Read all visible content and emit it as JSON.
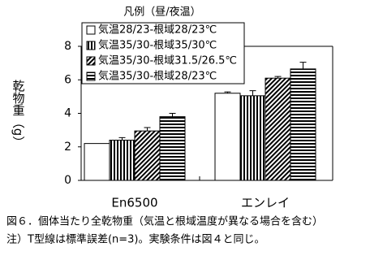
{
  "chart_data": {
    "type": "bar",
    "legend_title": "凡例（昼/夜温）",
    "ylabel": "乾物重（g）",
    "caption": [
      "図６．個体当たり全乾物重（気温と根域温度が異なる場合を含む）",
      "注）T型線は標準誤差(n=3)。実験条件は図４と同じ。"
    ],
    "categories": [
      "En6500",
      "エンレイ"
    ],
    "series": [
      {
        "name": "気温28/23-根域28/23℃",
        "values": [
          2.2,
          5.2
        ],
        "errors": [
          0,
          0.08
        ]
      },
      {
        "name": "気温35/30-根域35/30℃",
        "values": [
          2.4,
          5.05
        ],
        "errors": [
          0.15,
          0.3
        ]
      },
      {
        "name": "気温35/30-根域31.5/26.5℃",
        "values": [
          2.95,
          6.1
        ],
        "errors": [
          0.2,
          0.1
        ]
      },
      {
        "name": "気温35/30-根域28/23℃",
        "values": [
          3.8,
          6.65
        ],
        "errors": [
          0.2,
          0.4
        ]
      }
    ],
    "ylim": [
      0,
      8
    ],
    "yticks": [
      0,
      2,
      4,
      6,
      8
    ]
  }
}
